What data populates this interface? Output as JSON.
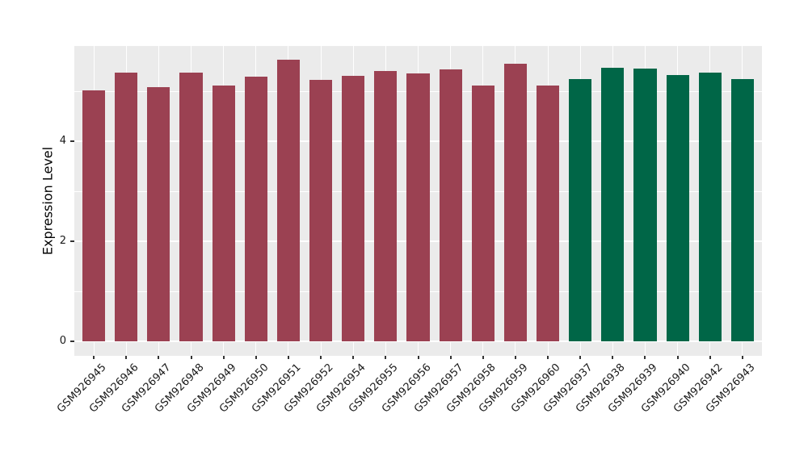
{
  "chart_data": {
    "type": "bar",
    "title": "",
    "xlabel": "",
    "ylabel": "Expression Level",
    "categories": [
      "GSM926945",
      "GSM926946",
      "GSM926947",
      "GSM926948",
      "GSM926949",
      "GSM926950",
      "GSM926951",
      "GSM926952",
      "GSM926954",
      "GSM926955",
      "GSM926956",
      "GSM926957",
      "GSM926958",
      "GSM926959",
      "GSM926960",
      "GSM926937",
      "GSM926938",
      "GSM926939",
      "GSM926940",
      "GSM926942",
      "GSM926943"
    ],
    "values": [
      5.02,
      5.37,
      5.08,
      5.37,
      5.12,
      5.29,
      5.63,
      5.23,
      5.31,
      5.41,
      5.35,
      5.43,
      5.12,
      5.55,
      5.12,
      5.24,
      5.47,
      5.46,
      5.32,
      5.38,
      5.24
    ],
    "bar_colors": [
      "#9B4152",
      "#9B4152",
      "#9B4152",
      "#9B4152",
      "#9B4152",
      "#9B4152",
      "#9B4152",
      "#9B4152",
      "#9B4152",
      "#9B4152",
      "#9B4152",
      "#9B4152",
      "#9B4152",
      "#9B4152",
      "#9B4152",
      "#006647",
      "#006647",
      "#006647",
      "#006647",
      "#006647",
      "#006647"
    ],
    "group_colors": {
      "red_group": "#9B4152",
      "green_group": "#006647"
    },
    "yticks": [
      0,
      2,
      4
    ],
    "ytick_labels": [
      "0",
      "2",
      "4"
    ],
    "minor_yticks": [
      1,
      3,
      5
    ],
    "ylim": [
      -0.29,
      5.905
    ],
    "xlim": [
      -0.6,
      20.6
    ],
    "bar_width_units": 0.7,
    "grid": true,
    "legend": "none",
    "plot_bg_color": "#EBEBEB",
    "grid_color": "#FFFFFF",
    "x_label_rotation_deg": 45
  }
}
